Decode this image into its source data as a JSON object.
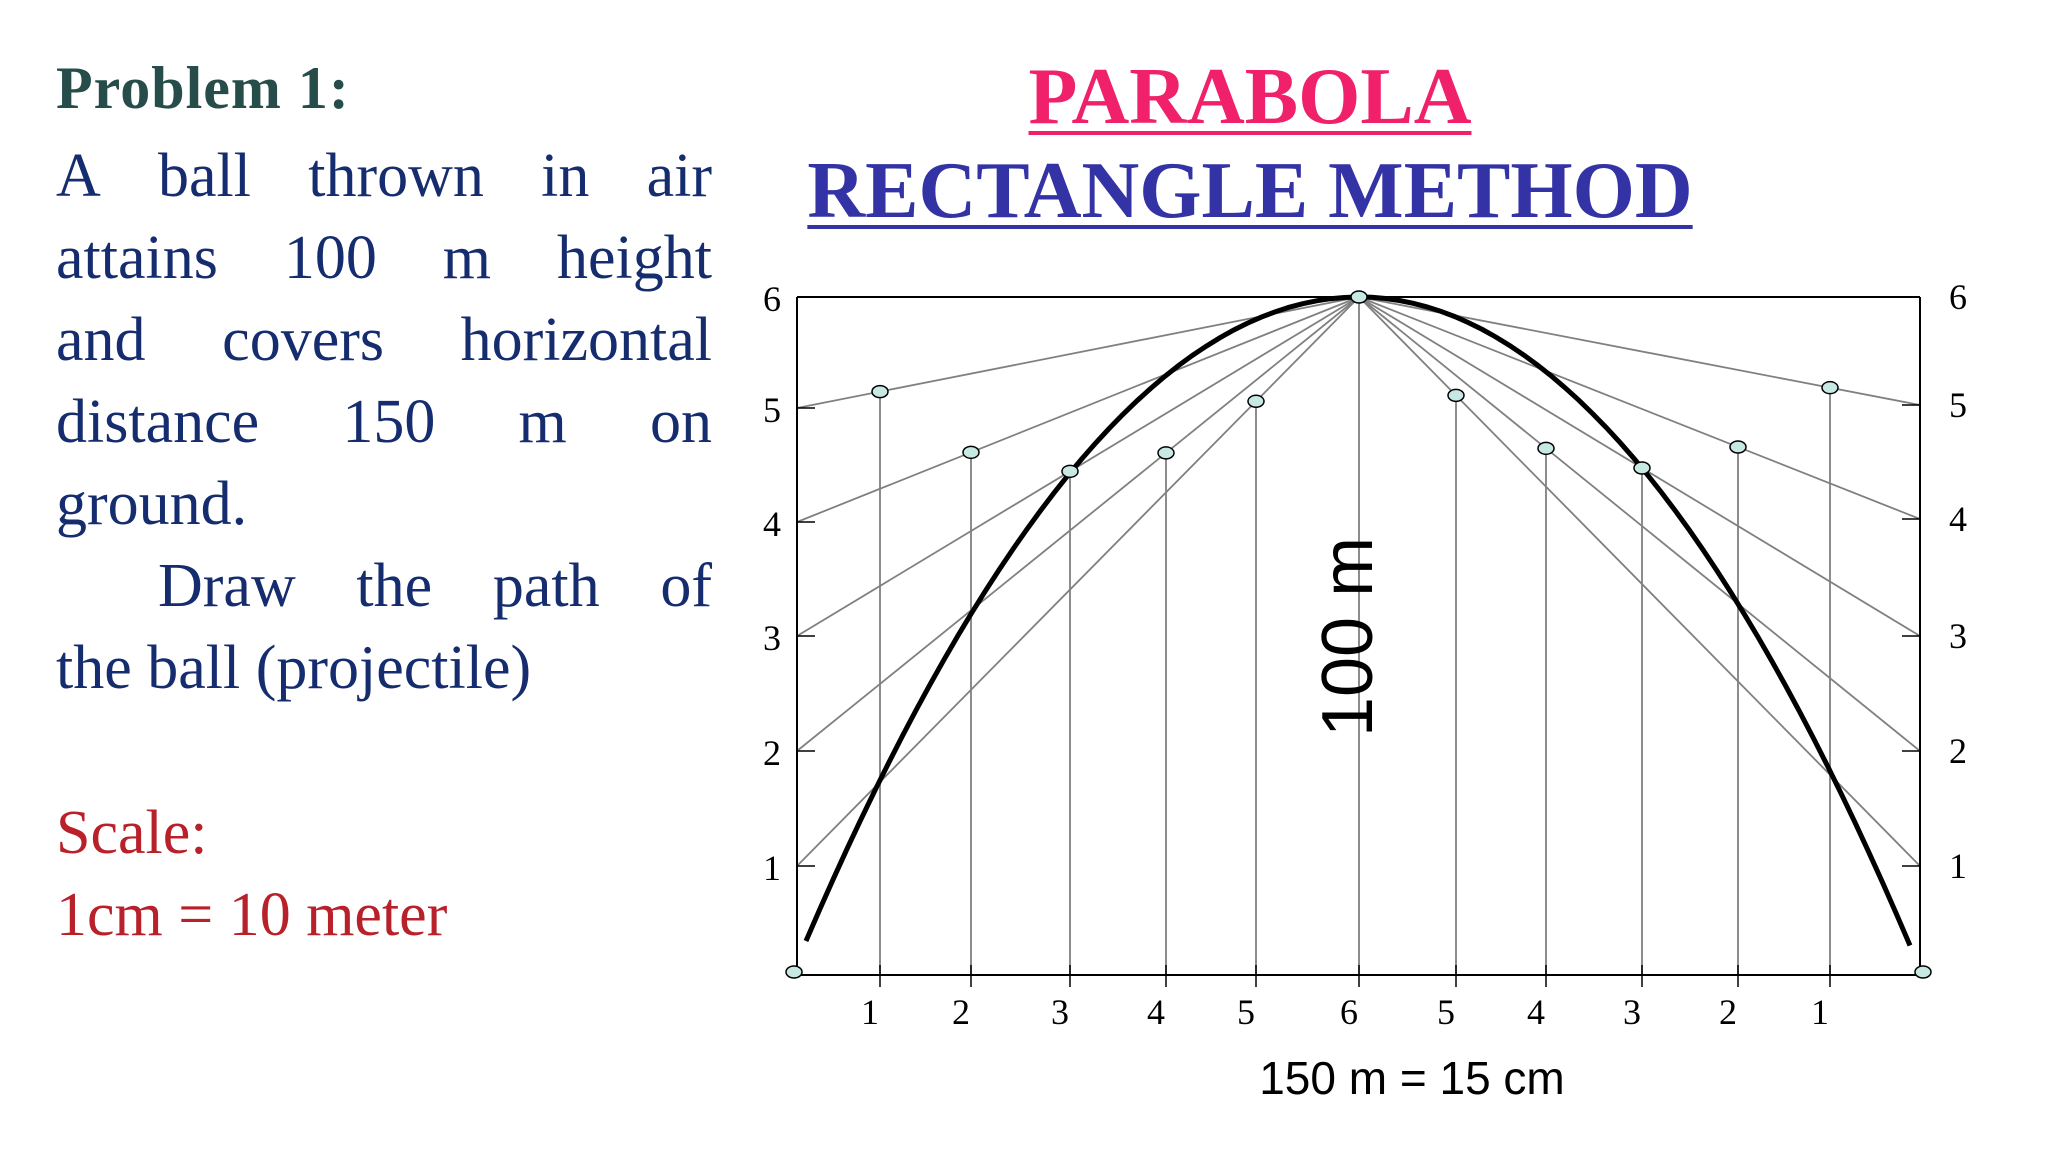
{
  "problem": {
    "heading": "Problem  1:",
    "lines": [
      [
        "A",
        "ball",
        "thrown",
        "in",
        "air"
      ],
      [
        "attains",
        "100",
        "m",
        "height"
      ],
      [
        "and",
        "covers",
        "horizontal"
      ],
      [
        "distance",
        "150",
        "m",
        "on"
      ]
    ],
    "line5": "ground.",
    "para2_line1": [
      "Draw",
      "the",
      "path",
      "of"
    ],
    "para2_line2": "the ball (projectile)"
  },
  "scale": {
    "label": "Scale:",
    "value": "1cm = 10 meter"
  },
  "title": {
    "line1": "PARABOLA",
    "line2": "RECTANGLE METHOD"
  },
  "diagram": {
    "height_label": "100 m",
    "width_label": "150 m = 15 cm",
    "left_axis_ticks": [
      "6",
      "5",
      "4",
      "3",
      "2",
      "1"
    ],
    "right_axis_ticks": [
      "6",
      "5",
      "4",
      "3",
      "2",
      "1"
    ],
    "bottom_ticks": [
      "1",
      "2",
      "3",
      "4",
      "5",
      "6",
      "5",
      "4",
      "3",
      "2",
      "1"
    ],
    "colors": {
      "curve": "#000000",
      "lines": "#808080",
      "points": "#c8e8e4"
    }
  }
}
